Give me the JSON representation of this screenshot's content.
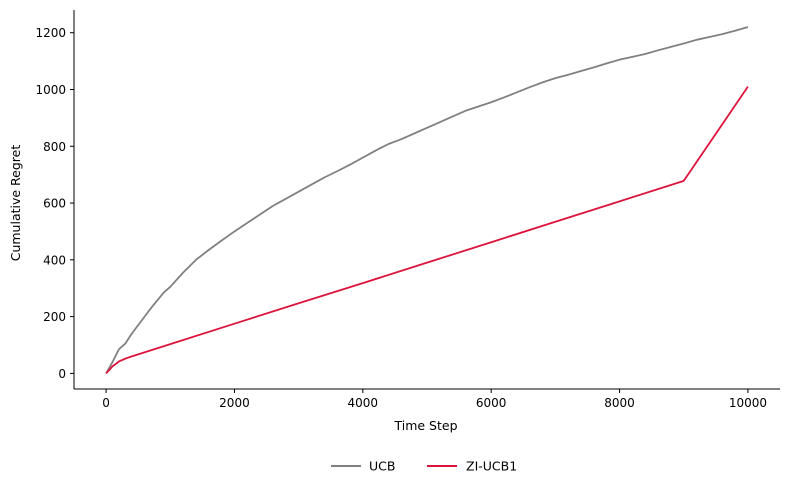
{
  "chart_data": {
    "type": "line",
    "title": "",
    "xlabel": "Time Step",
    "ylabel": "Cumulative Regret",
    "xlim": [
      -500,
      10500
    ],
    "ylim": [
      -55,
      1280
    ],
    "xticks": [
      0,
      2000,
      4000,
      6000,
      8000,
      10000
    ],
    "yticks": [
      0,
      200,
      400,
      600,
      800,
      1000,
      1200
    ],
    "grid": false,
    "legend": "bottom-center",
    "series": [
      {
        "name": "UCB",
        "color": "#808080",
        "x": [
          0,
          100,
          200,
          300,
          400,
          500,
          600,
          700,
          800,
          900,
          1000,
          1200,
          1400,
          1600,
          1800,
          2000,
          2200,
          2400,
          2600,
          2800,
          3000,
          3200,
          3400,
          3600,
          3800,
          4000,
          4200,
          4400,
          4600,
          4800,
          5000,
          5200,
          5400,
          5600,
          5800,
          6000,
          6200,
          6400,
          6600,
          6800,
          7000,
          7200,
          7400,
          7600,
          7800,
          8000,
          8200,
          8400,
          8600,
          8800,
          9000,
          9200,
          9400,
          9600,
          9800,
          10000
        ],
        "y": [
          0,
          40,
          85,
          105,
          140,
          170,
          200,
          230,
          258,
          285,
          305,
          355,
          400,
          435,
          468,
          500,
          530,
          560,
          590,
          615,
          640,
          665,
          690,
          712,
          735,
          760,
          785,
          808,
          825,
          845,
          865,
          885,
          905,
          925,
          940,
          955,
          972,
          990,
          1008,
          1025,
          1040,
          1052,
          1065,
          1078,
          1092,
          1105,
          1115,
          1125,
          1138,
          1150,
          1162,
          1175,
          1185,
          1195,
          1207,
          1220
        ]
      },
      {
        "name": "ZI-UCB1",
        "color": "#dc143c",
        "x": [
          0,
          50,
          100,
          150,
          200,
          300,
          400,
          500,
          1000,
          2000,
          3000,
          4000,
          5000,
          6000,
          7000,
          8000,
          9000,
          10000
        ],
        "y": [
          0,
          12,
          25,
          33,
          42,
          52,
          60,
          67,
          103,
          175,
          247,
          318,
          390,
          462,
          534,
          606,
          678,
          1010
        ]
      }
    ]
  }
}
